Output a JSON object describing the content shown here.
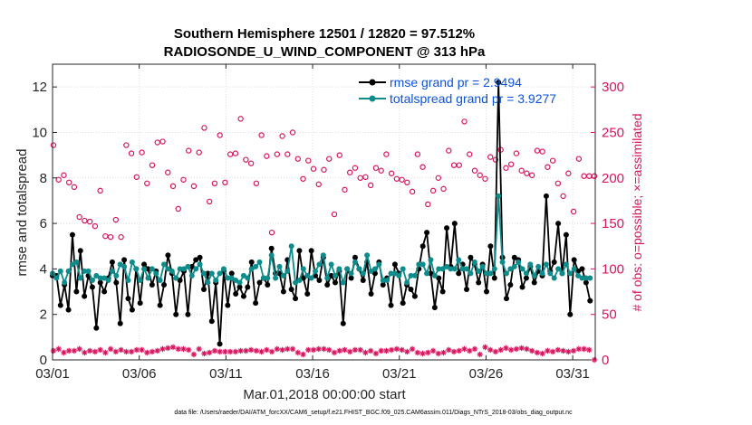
{
  "chart_data": {
    "type": "line",
    "title_line1": "Southern Hemisphere 12501 / 12820 = 97.512%",
    "title_line2": "RADIOSONDE_U_WIND_COMPONENT @ 313 hPa",
    "ylabel": "rmse and totalspread",
    "ylabel_right": "# of obs: o=possible; ×=assimilated",
    "xlabel": "Mar.01,2018 00:00:00 start",
    "footer": "data file: /Users/raeder/DAI/ATM_forcXX/CAM6_setup/f.e21.FHIST_BGC.f09_025.CAM6assim.011/Diags_NTrS_2018-03/obs_diag_output.nc",
    "xlim": [
      1,
      32.3
    ],
    "ylim": [
      0,
      13
    ],
    "ylim_right": [
      0,
      325
    ],
    "x_ticks": [
      1,
      6,
      11,
      16,
      21,
      26,
      31
    ],
    "x_tick_labels": [
      "03/01",
      "03/06",
      "03/11",
      "03/16",
      "03/21",
      "03/26",
      "03/31"
    ],
    "y_ticks": [
      0,
      2,
      4,
      6,
      8,
      10,
      12
    ],
    "y_tick_labels": [
      "0",
      "2",
      "4",
      "6",
      "8",
      "10",
      "12"
    ],
    "y_right_ticks": [
      0,
      50,
      100,
      150,
      200,
      250,
      300
    ],
    "y_right_tick_labels": [
      "0",
      "50",
      "100",
      "150",
      "200",
      "250",
      "300"
    ],
    "colors": {
      "rmse": "#000000",
      "spread": "#0e8b8b",
      "obs": "#d6155f",
      "legend_text": "#0b53d9"
    },
    "series": [
      {
        "name": "rmse grand pr = 2.9494",
        "color": "#000000",
        "values": [
          3.7,
          3.7,
          2.4,
          3.3,
          2.2,
          5.5,
          3.0,
          4.8,
          2.8,
          3.7,
          3.2,
          1.4,
          3.4,
          3.0,
          3.6,
          4.3,
          3.4,
          1.6,
          4.4,
          2.7,
          2.2,
          4.0,
          2.5,
          4.2,
          4.0,
          3.3,
          3.9,
          2.4,
          3.3,
          4.6,
          3.8,
          2.0,
          3.5,
          3.9,
          2.0,
          4.1,
          4.4,
          4.5,
          3.1,
          3.8,
          1.7,
          3.4,
          0.7,
          3.9,
          2.4,
          3.8,
          2.9,
          3.2,
          2.8,
          3.2,
          4.3,
          2.5,
          3.4,
          3.6,
          3.3,
          4.9,
          3.8,
          3.8,
          3.0,
          4.4,
          3.1,
          2.7,
          4.8,
          3.6,
          2.9,
          4.8,
          3.7,
          3.5,
          4.5,
          3.3,
          3.7,
          3.4,
          3.9,
          1.6,
          4.0,
          3.6,
          4.5,
          4.0,
          3.5,
          4.3,
          2.9,
          3.8,
          4.3,
          3.3,
          3.6,
          2.4,
          4.2,
          3.8,
          2.5,
          3.3,
          3.1,
          2.8,
          4.0,
          5.0,
          5.6,
          3.8,
          2.3,
          3.6,
          3.0,
          5.8,
          4.1,
          6.0,
          3.8,
          4.2,
          3.1,
          4.5,
          4.2,
          3.4,
          4.2,
          3.0,
          5.0,
          3.6,
          12.2,
          4.5,
          2.7,
          3.3,
          4.5,
          4.4,
          3.2,
          3.6,
          4.1,
          3.4,
          3.9,
          3.7,
          7.2,
          3.9,
          4.3,
          6.0,
          3.8,
          5.5,
          2.0,
          4.4,
          3.9,
          4.0,
          3.4,
          2.6
        ]
      },
      {
        "name": "totalspread grand pr = 3.9277",
        "color": "#0e8b8b",
        "values": [
          3.8,
          3.6,
          3.9,
          3.4,
          3.9,
          4.2,
          4.3,
          3.6,
          3.9,
          3.9,
          3.5,
          3.7,
          3.6,
          3.6,
          3.5,
          3.9,
          3.7,
          4.2,
          4.1,
          3.5,
          4.3,
          4.0,
          3.5,
          4.0,
          3.6,
          4.0,
          3.8,
          3.5,
          4.2,
          4.0,
          3.9,
          3.6,
          4.0,
          4.0,
          4.1,
          3.7,
          4.0,
          4.2,
          3.8,
          3.4,
          3.8,
          3.5,
          3.8,
          4.0,
          3.6,
          3.6,
          3.5,
          3.4,
          3.7,
          3.6,
          4.0,
          4.1,
          4.3,
          3.6,
          3.6,
          4.6,
          3.6,
          4.1,
          3.7,
          3.9,
          5.0,
          3.4,
          3.5,
          4.0,
          3.7,
          3.6,
          3.9,
          4.2,
          4.6,
          3.6,
          4.2,
          3.7,
          4.0,
          3.4,
          4.0,
          3.8,
          4.3,
          4.0,
          3.8,
          4.6,
          3.9,
          4.0,
          4.2,
          3.5,
          3.5,
          3.8,
          3.8,
          3.7,
          4.0,
          3.4,
          3.7,
          3.7,
          4.2,
          4.2,
          3.8,
          4.4,
          3.7,
          4.0,
          4.0,
          4.1,
          4.0,
          4.0,
          4.4,
          4.0,
          4.0,
          3.8,
          4.3,
          3.9,
          4.1,
          3.8,
          3.8,
          4.0,
          7.2,
          4.3,
          3.8,
          4.0,
          4.1,
          4.3,
          4.0,
          3.8,
          4.2,
          3.7,
          4.1,
          3.8,
          4.2,
          3.8,
          3.6,
          4.0,
          3.8,
          4.2,
          3.8,
          4.0,
          3.7,
          3.6,
          3.6,
          3.6
        ]
      },
      {
        "name": "possible",
        "axis": "right",
        "marker": "circle",
        "color": "#d6155f",
        "values": [
          236,
          198,
          203,
          195,
          190,
          157,
          153,
          152,
          147,
          186,
          136,
          135,
          154,
          135,
          236,
          227,
          201,
          228,
          194,
          214,
          239,
          240,
          206,
          191,
          166,
          198,
          230,
          191,
          228,
          255,
          174,
          194,
          247,
          195,
          226,
          227,
          265,
          220,
          216,
          194,
          247,
          224,
          140,
          226,
          246,
          226,
          250,
          221,
          199,
          219,
          210,
          193,
          209,
          221,
          160,
          225,
          187,
          206,
          211,
          200,
          201,
          192,
          211,
          208,
          226,
          205,
          199,
          198,
          195,
          185,
          226,
          212,
          171,
          186,
          200,
          188,
          230,
          214,
          214,
          262,
          226,
          208,
          203,
          199,
          223,
          220,
          231,
          211,
          215,
          227,
          208,
          205,
          203,
          230,
          229,
          212,
          219,
          194,
          180,
          205,
          163,
          221,
          202,
          202,
          202
        ]
      },
      {
        "name": "assimilated",
        "axis": "right",
        "marker": "asterisk",
        "color": "#d6155f",
        "values": [
          10,
          12,
          8,
          10,
          10,
          12,
          8,
          10,
          9,
          11,
          8,
          12,
          9,
          11,
          9,
          9,
          11,
          11,
          8,
          9,
          10,
          12,
          13,
          14,
          12,
          12,
          11,
          6,
          12,
          7,
          8,
          10,
          9,
          9,
          9,
          9,
          10,
          10,
          11,
          10,
          9,
          11,
          9,
          12,
          11,
          12,
          12,
          8,
          6,
          11,
          11,
          12,
          12,
          11,
          8,
          10,
          11,
          9,
          11,
          11,
          8,
          10,
          7,
          10,
          10,
          11,
          12,
          11,
          9,
          12,
          8,
          7,
          8,
          10,
          7,
          8,
          11,
          9,
          10,
          12,
          10,
          12,
          6,
          14,
          11,
          9,
          11,
          13,
          11,
          12,
          13,
          12,
          10,
          8,
          7,
          10,
          9,
          11,
          10,
          9,
          10,
          12,
          12,
          11,
          0
        ]
      }
    ],
    "legend": [
      "rmse grand pr = 2.9494",
      "totalspread grand pr = 3.9277"
    ],
    "legend_position": "top-right"
  }
}
